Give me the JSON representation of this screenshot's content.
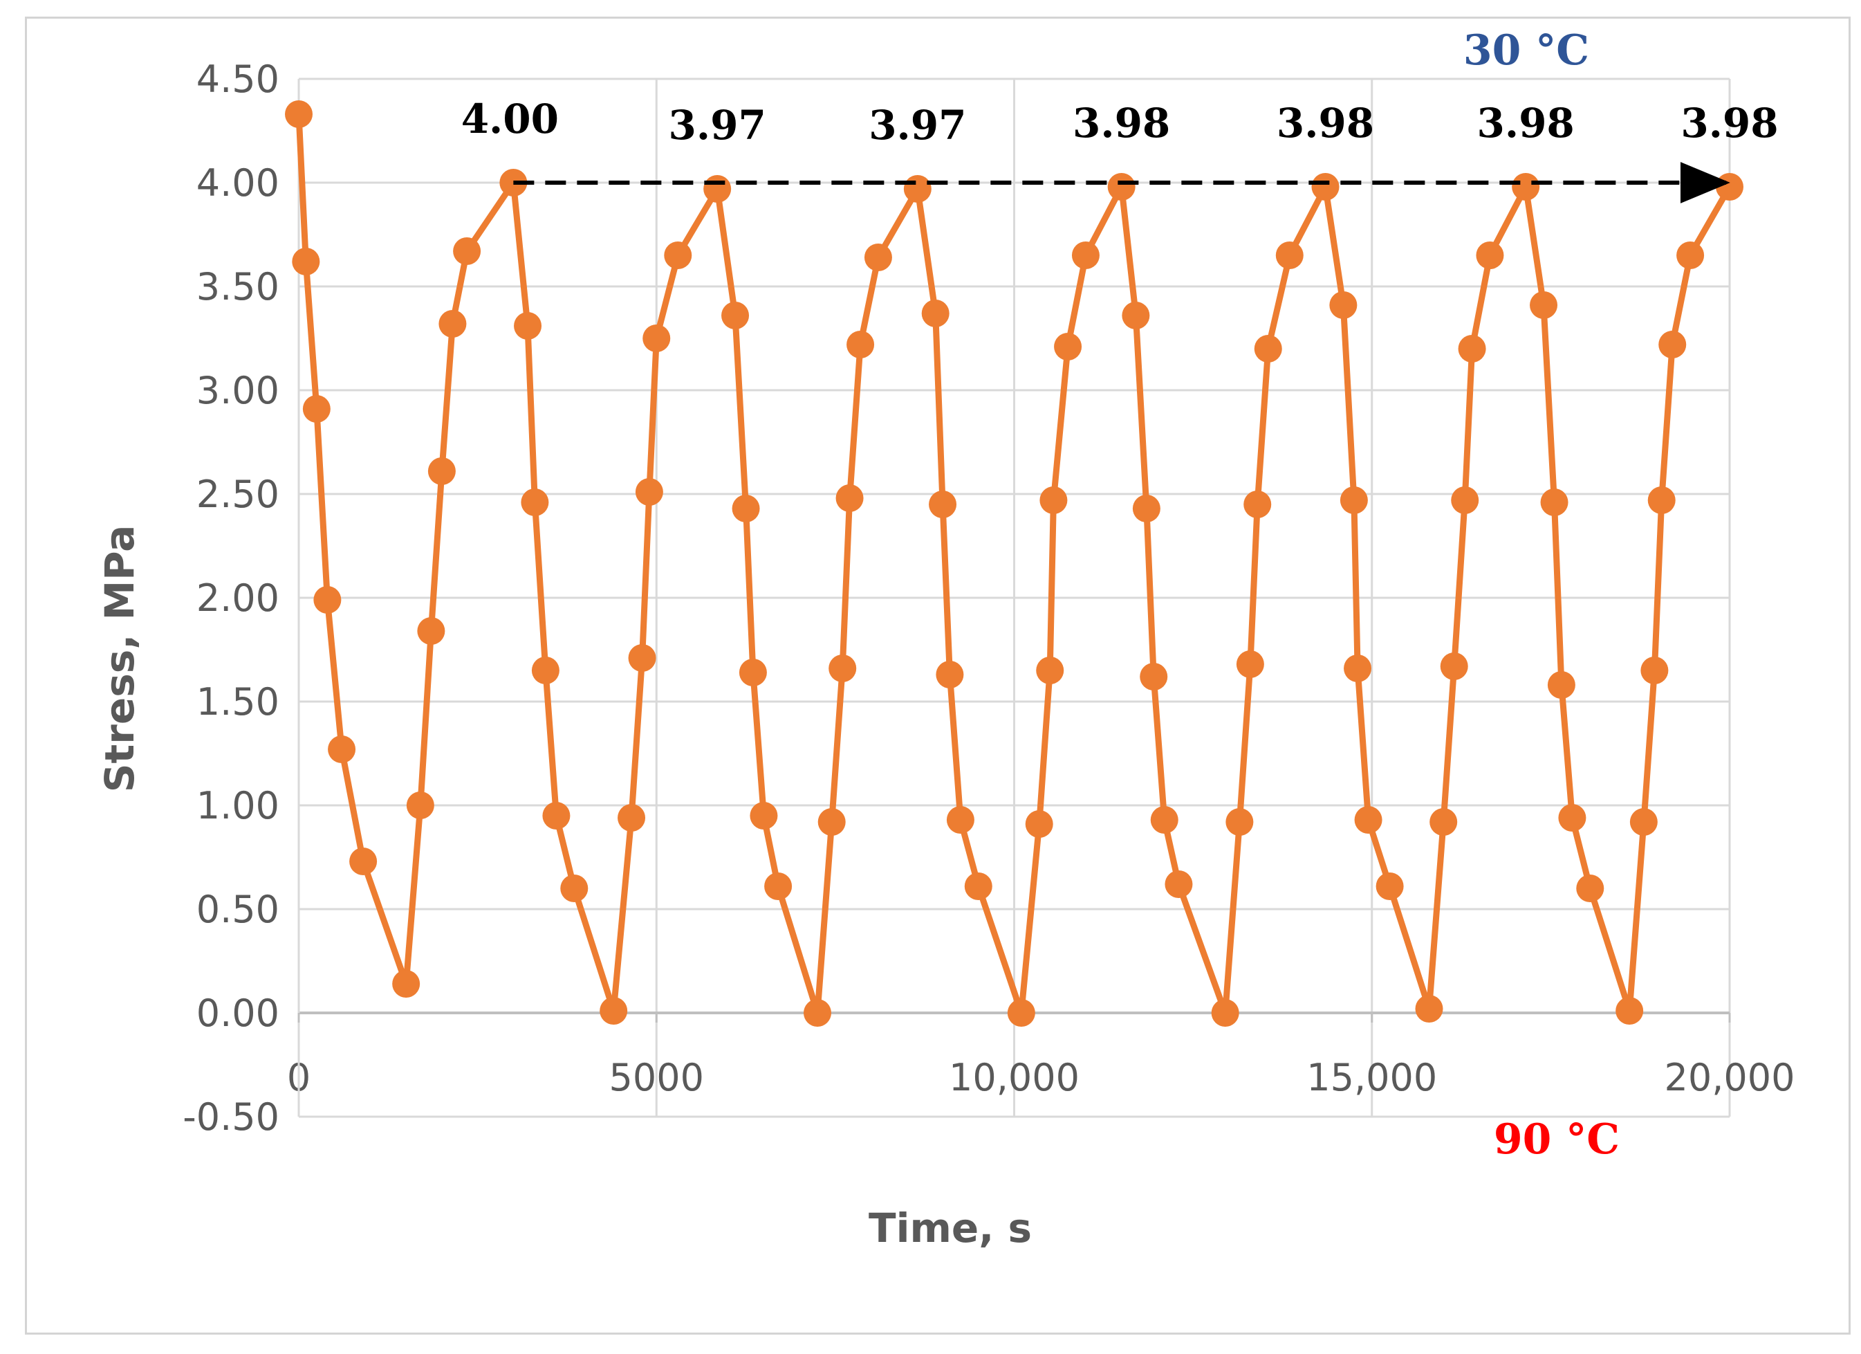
{
  "chart_data": {
    "type": "line",
    "title": "",
    "xlabel": "Time, s",
    "ylabel": "Stress, MPa",
    "xlim": [
      0,
      20000
    ],
    "ylim": [
      -0.5,
      4.5
    ],
    "x_ticks": [
      0,
      5000,
      10000,
      15000,
      20000
    ],
    "x_tick_labels": [
      "0",
      "5000",
      "10,000",
      "15,000",
      "20,000"
    ],
    "y_ticks": [
      -0.5,
      0,
      0.5,
      1,
      1.5,
      2,
      2.5,
      3,
      3.5,
      4,
      4.5
    ],
    "y_tick_labels": [
      "-0.50",
      "0.00",
      "0.50",
      "1.00",
      "1.50",
      "2.00",
      "2.50",
      "3.00",
      "3.50",
      "4.00",
      "4.50"
    ],
    "grid": true,
    "series": [
      {
        "name": "Stress",
        "color": "#ED7D31",
        "x": [
          0,
          100,
          250,
          400,
          600,
          900,
          1500,
          1700,
          1850,
          2000,
          2150,
          2350,
          3000,
          3200,
          3300,
          3450,
          3600,
          3850,
          4400,
          4650,
          4800,
          4900,
          5000,
          5300,
          5850,
          6100,
          6250,
          6350,
          6500,
          6700,
          7250,
          7450,
          7600,
          7700,
          7850,
          8100,
          8650,
          8900,
          9000,
          9100,
          9250,
          9500,
          10100,
          10350,
          10500,
          10550,
          10750,
          11000,
          11500,
          11700,
          11850,
          11950,
          12100,
          12300,
          12950,
          13150,
          13300,
          13400,
          13550,
          13850,
          14350,
          14600,
          14750,
          14800,
          14950,
          15250,
          15800,
          16000,
          16150,
          16300,
          16400,
          16650,
          17150,
          17400,
          17550,
          17650,
          17800,
          18050,
          18600,
          18800,
          18950,
          19050,
          19200,
          19450,
          20000
        ],
        "y": [
          4.33,
          3.62,
          2.91,
          1.99,
          1.27,
          0.73,
          0.14,
          1.0,
          1.84,
          2.61,
          3.32,
          3.67,
          4.0,
          3.31,
          2.46,
          1.65,
          0.95,
          0.6,
          0.01,
          0.94,
          1.71,
          2.51,
          3.25,
          3.65,
          3.97,
          3.36,
          2.43,
          1.64,
          0.95,
          0.61,
          0.0,
          0.92,
          1.66,
          2.48,
          3.22,
          3.64,
          3.97,
          3.37,
          2.45,
          1.63,
          0.93,
          0.61,
          0.0,
          0.91,
          1.65,
          2.47,
          3.21,
          3.65,
          3.98,
          3.36,
          2.43,
          1.62,
          0.93,
          0.62,
          0.0,
          0.92,
          1.68,
          2.45,
          3.2,
          3.65,
          3.98,
          3.41,
          2.47,
          1.66,
          0.93,
          0.61,
          0.02,
          0.92,
          1.67,
          2.47,
          3.2,
          3.65,
          3.98,
          3.41,
          2.46,
          1.58,
          0.94,
          0.6,
          0.01,
          0.92,
          1.65,
          2.47,
          3.22,
          3.65,
          3.98
        ]
      }
    ],
    "peak_labels": [
      {
        "x": 3000,
        "y": 4.0,
        "label": "4.00"
      },
      {
        "x": 5850,
        "y": 3.97,
        "label": "3.97"
      },
      {
        "x": 8650,
        "y": 3.97,
        "label": "3.97"
      },
      {
        "x": 11500,
        "y": 3.98,
        "label": "3.98"
      },
      {
        "x": 14350,
        "y": 3.98,
        "label": "3.98"
      },
      {
        "x": 17150,
        "y": 3.98,
        "label": "3.98"
      },
      {
        "x": 20000,
        "y": 3.98,
        "label": "3.98"
      }
    ],
    "reference_arrow": {
      "x_start": 3000,
      "x_end": 19950,
      "y": 4.0,
      "style": "dashed",
      "color": "#000000"
    },
    "annotations": [
      {
        "text": "30 °C",
        "color": "#2F5597",
        "position": "top-right"
      },
      {
        "text": "90 °C",
        "color": "#FF0000",
        "position": "bottom-right"
      }
    ]
  }
}
